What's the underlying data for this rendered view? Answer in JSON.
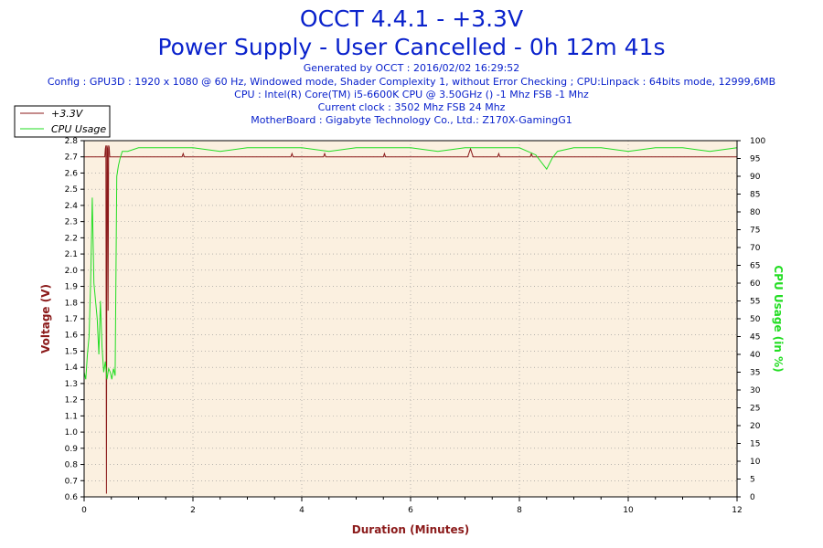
{
  "header": {
    "title_line1": "OCCT 4.4.1 - +3.3V",
    "title_line2": "Power Supply - User Cancelled - 0h 12m 41s",
    "generated": "Generated by OCCT : 2016/02/02 16:29:52",
    "config": "Config : GPU3D : 1920 x 1080 @ 60 Hz, Windowed mode, Shader Complexity 1, without Error Checking ; CPU:Linpack : 64bits mode, 12999,6MB",
    "cpu": "CPU : Intel(R) Core(TM) i5-6600K CPU @ 3.50GHz () -1 Mhz FSB -1 Mhz",
    "clock": "Current clock : 3502 Mhz FSB 24 Mhz",
    "motherboard": "MotherBoard : Gigabyte Technology Co., Ltd.: Z170X-GamingG1"
  },
  "colors": {
    "title": "#0a22cc",
    "voltage": "#8b1a1a",
    "cpu": "#22dd22",
    "plot_bg": "#fbf0e0",
    "grid": "#909090"
  },
  "chart_data": {
    "type": "line",
    "xlabel": "Duration (Minutes)",
    "ylabel_left": "Voltage (V)",
    "ylabel_right": "CPU Usage (in %)",
    "xlim": [
      0,
      12
    ],
    "ylim_left": [
      0.6,
      2.8
    ],
    "ylim_right": [
      0,
      100
    ],
    "x_ticks": [
      0,
      2,
      4,
      6,
      8,
      10,
      12
    ],
    "y_left_ticks": [
      0.6,
      0.7,
      0.8,
      0.9,
      1.0,
      1.1,
      1.2,
      1.3,
      1.4,
      1.5,
      1.6,
      1.7,
      1.8,
      1.9,
      2.0,
      2.1,
      2.2,
      2.3,
      2.4,
      2.5,
      2.6,
      2.7,
      2.8
    ],
    "y_right_ticks": [
      0,
      5,
      10,
      15,
      20,
      25,
      30,
      35,
      40,
      45,
      50,
      55,
      60,
      65,
      70,
      75,
      80,
      85,
      90,
      95,
      100
    ],
    "grid": true,
    "legend_position": "top-left",
    "series": [
      {
        "name": "+3.3V",
        "axis": "left",
        "x": [
          0.0,
          0.3,
          0.38,
          0.39,
          0.4,
          0.41,
          0.42,
          0.43,
          0.44,
          0.45,
          0.46,
          0.47,
          0.48,
          0.5,
          1.8,
          1.82,
          1.84,
          3.8,
          3.82,
          3.84,
          4.4,
          4.42,
          4.44,
          5.5,
          5.52,
          5.54,
          7.05,
          7.1,
          7.15,
          7.2,
          7.6,
          7.62,
          7.64,
          8.2,
          8.22,
          8.24,
          12.0
        ],
        "y": [
          2.7,
          2.7,
          2.7,
          2.75,
          2.77,
          0.62,
          2.77,
          2.75,
          1.75,
          2.77,
          2.76,
          2.7,
          2.7,
          2.7,
          2.7,
          2.72,
          2.7,
          2.7,
          2.72,
          2.7,
          2.7,
          2.72,
          2.7,
          2.7,
          2.72,
          2.7,
          2.7,
          2.75,
          2.7,
          2.7,
          2.7,
          2.72,
          2.7,
          2.7,
          2.72,
          2.7,
          2.7
        ]
      },
      {
        "name": "CPU Usage",
        "axis": "right",
        "x": [
          0.0,
          0.03,
          0.06,
          0.09,
          0.12,
          0.15,
          0.18,
          0.21,
          0.24,
          0.27,
          0.3,
          0.33,
          0.36,
          0.39,
          0.42,
          0.45,
          0.48,
          0.51,
          0.54,
          0.57,
          0.6,
          0.63,
          0.66,
          0.7,
          0.8,
          1.0,
          1.5,
          2.0,
          2.5,
          3.0,
          3.5,
          4.0,
          4.5,
          5.0,
          5.5,
          6.0,
          6.5,
          7.0,
          7.5,
          8.0,
          8.3,
          8.5,
          8.6,
          8.7,
          9.0,
          9.5,
          10.0,
          10.5,
          11.0,
          11.5,
          12.0
        ],
        "y": [
          35,
          33,
          40,
          45,
          60,
          84,
          60,
          55,
          50,
          40,
          55,
          42,
          35,
          38,
          33,
          36,
          35,
          33,
          36,
          34,
          90,
          93,
          95,
          97,
          97,
          98,
          98,
          98,
          97,
          98,
          98,
          98,
          97,
          98,
          98,
          98,
          97,
          98,
          98,
          98,
          96,
          92,
          95,
          97,
          98,
          98,
          97,
          98,
          98,
          97,
          98
        ]
      }
    ]
  }
}
